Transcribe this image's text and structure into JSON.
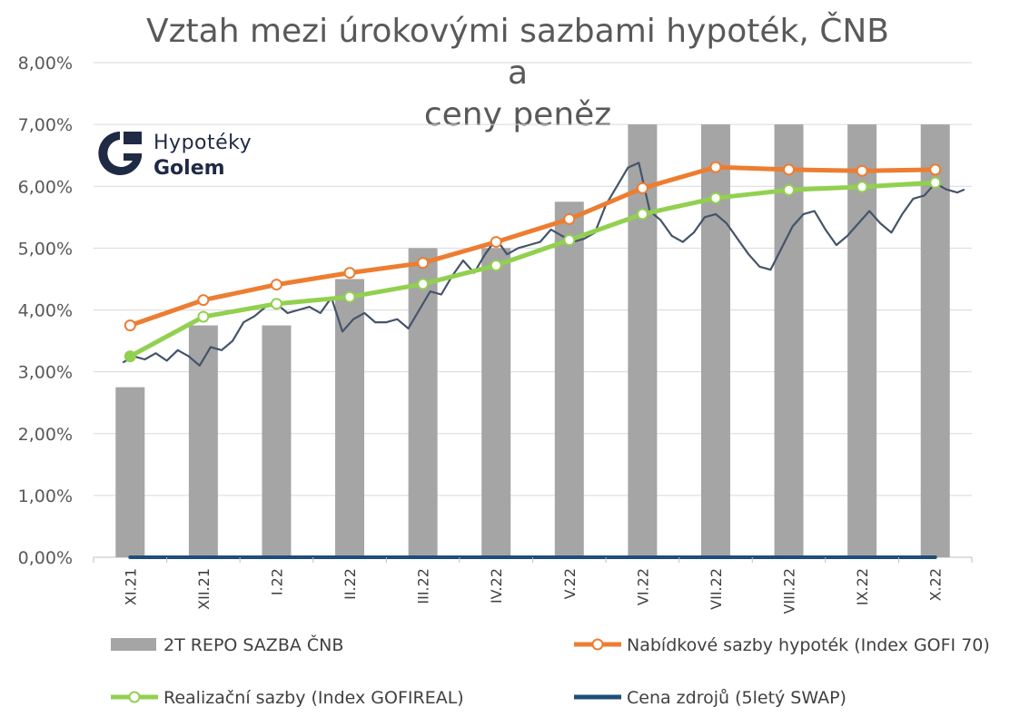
{
  "chart_data": {
    "type": "bar",
    "title": "Vztah mezi úrokovými sazbami hypoték, ČNB a ceny peněz",
    "title_lines": [
      "Vztah mezi úrokovými sazbami hypoték, ČNB a",
      "ceny peněz"
    ],
    "categories": [
      "XI.21",
      "XII.21",
      "I.22",
      "II.22",
      "III.22",
      "IV.22",
      "V.22",
      "VI.22",
      "VII.22",
      "VIII.22",
      "IX.22",
      "X.22"
    ],
    "y_ticks": [
      "0,00%",
      "1,00%",
      "2,00%",
      "3,00%",
      "4,00%",
      "5,00%",
      "6,00%",
      "7,00%",
      "8,00%"
    ],
    "ylim": [
      0,
      8
    ],
    "grid": true,
    "legend_position": "bottom",
    "series": [
      {
        "name": "2T REPO SAZBA ČNB",
        "type": "bar",
        "color": "#a5a5a5",
        "values": [
          2.75,
          3.75,
          3.75,
          4.5,
          5.0,
          5.0,
          5.75,
          7.0,
          7.0,
          7.0,
          7.0,
          7.0
        ]
      },
      {
        "name": "Nabídkové sazby hypoték (Index GOFI 70)",
        "type": "line",
        "color": "#ed7d31",
        "values": [
          3.75,
          4.16,
          4.41,
          4.6,
          4.76,
          5.1,
          5.47,
          5.97,
          6.31,
          6.27,
          6.25,
          6.27
        ]
      },
      {
        "name": "Realizační sazby (Index GOFIREAL)",
        "type": "line",
        "color": "#92d050",
        "values": [
          3.25,
          3.89,
          4.1,
          4.21,
          4.42,
          4.72,
          5.13,
          5.55,
          5.81,
          5.94,
          5.99,
          6.06
        ]
      },
      {
        "name": "Cena zdrojů (5letý SWAP)",
        "type": "line",
        "color": "#1f4e79",
        "values": [
          0,
          0,
          0,
          0,
          0,
          0,
          0,
          0,
          0,
          0,
          0,
          0
        ]
      }
    ],
    "swap_trace": {
      "color": "#44546a",
      "x": [
        -0.1,
        0.05,
        0.2,
        0.35,
        0.5,
        0.65,
        0.8,
        0.95,
        1.1,
        1.25,
        1.4,
        1.55,
        1.7,
        1.85,
        2.0,
        2.15,
        2.3,
        2.45,
        2.6,
        2.75,
        2.9,
        3.05,
        3.2,
        3.35,
        3.5,
        3.65,
        3.8,
        3.95,
        4.1,
        4.25,
        4.4,
        4.55,
        4.7,
        4.85,
        5.0,
        5.15,
        5.3,
        5.45,
        5.6,
        5.75,
        5.9,
        6.05,
        6.2,
        6.35,
        6.5,
        6.65,
        6.8,
        6.95,
        7.1,
        7.25,
        7.4,
        7.55,
        7.7,
        7.85,
        8.0,
        8.15,
        8.3,
        8.45,
        8.6,
        8.75,
        8.9,
        9.05,
        9.2,
        9.35,
        9.5,
        9.65,
        9.8,
        9.95,
        10.1,
        10.25,
        10.4,
        10.55,
        10.7,
        10.85,
        11.0,
        11.15,
        11.3,
        11.4
      ],
      "y": [
        3.15,
        3.25,
        3.2,
        3.3,
        3.18,
        3.35,
        3.25,
        3.1,
        3.4,
        3.35,
        3.5,
        3.8,
        3.9,
        4.05,
        4.1,
        3.95,
        4.0,
        4.05,
        3.95,
        4.2,
        3.65,
        3.85,
        3.95,
        3.8,
        3.8,
        3.85,
        3.7,
        4.0,
        4.3,
        4.25,
        4.55,
        4.8,
        4.6,
        4.9,
        5.15,
        4.9,
        5.0,
        5.05,
        5.1,
        5.3,
        5.2,
        5.1,
        5.15,
        5.25,
        5.7,
        6.0,
        6.3,
        6.38,
        5.6,
        5.45,
        5.2,
        5.1,
        5.25,
        5.5,
        5.55,
        5.4,
        5.15,
        4.9,
        4.7,
        4.65,
        5.0,
        5.35,
        5.55,
        5.6,
        5.3,
        5.05,
        5.2,
        5.4,
        5.6,
        5.4,
        5.25,
        5.55,
        5.8,
        5.85,
        6.05,
        5.95,
        5.9,
        5.95
      ]
    }
  },
  "logo": {
    "line1": "Hypotéky",
    "line2": "Golem"
  }
}
